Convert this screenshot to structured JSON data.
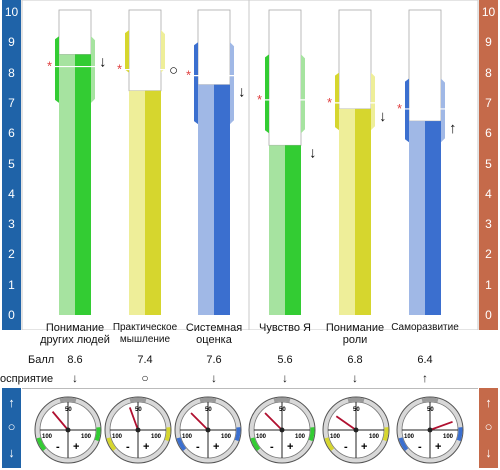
{
  "chart_data": {
    "type": "bar",
    "ylim": [
      0,
      10
    ],
    "yticks": [
      "0",
      "1",
      "2",
      "3",
      "4",
      "5",
      "6",
      "7",
      "8",
      "9",
      "10"
    ],
    "categories": [
      {
        "label_lines": [
          "Понимание",
          "других людей"
        ],
        "value": 8.6,
        "marker": 8.2,
        "band": [
          7.0,
          9.2
        ],
        "indicator": "↓",
        "color": "#33cc33",
        "light": "#a6e3a0",
        "gauge_angle": 130
      },
      {
        "label_lines": [
          "Практическое",
          "мышление"
        ],
        "value": 7.4,
        "marker": 8.1,
        "band": [
          8.0,
          9.4
        ],
        "indicator": "○",
        "color": "#d6d62e",
        "light": "#eeee99",
        "gauge_angle": 110
      },
      {
        "label_lines": [
          "Системная",
          "оценка"
        ],
        "value": 7.6,
        "marker": 7.9,
        "band": [
          6.3,
          9.0
        ],
        "indicator": "↓",
        "color": "#3b6fcf",
        "light": "#a0b8e6",
        "gauge_angle": 135
      },
      {
        "label_lines": [
          "Чувство Я"
        ],
        "value": 5.6,
        "marker": 7.1,
        "band": [
          6.0,
          8.6
        ],
        "indicator": "↓",
        "color": "#33cc33",
        "light": "#a6e3a0",
        "gauge_angle": 135
      },
      {
        "label_lines": [
          "Понимание",
          "роли"
        ],
        "value": 6.8,
        "marker": 7.0,
        "band": [
          6.1,
          8.0
        ],
        "indicator": "↓",
        "color": "#d6d62e",
        "light": "#eeee99",
        "gauge_angle": 145
      },
      {
        "label_lines": [
          "Саморазвитие"
        ],
        "value": 6.4,
        "marker": 6.8,
        "band": [
          5.7,
          7.8
        ],
        "indicator": "↑",
        "color": "#3b6fcf",
        "light": "#a0b8e6",
        "gauge_angle": 20
      }
    ],
    "values": [
      8.6,
      7.4,
      7.6,
      5.6,
      6.8,
      6.4
    ],
    "grid": false
  },
  "rows": {
    "score_label": "Балл",
    "perception_label": "осприятие",
    "score_values": [
      "8.6",
      "7.4",
      "7.6",
      "5.6",
      "6.8",
      "6.4"
    ]
  },
  "gauge": {
    "label_top": "50",
    "label_left": "100",
    "label_right": "100",
    "minus": "-",
    "plus": "+"
  },
  "legend": {
    "up": "↑",
    "neutral": "○",
    "down": "↓"
  }
}
